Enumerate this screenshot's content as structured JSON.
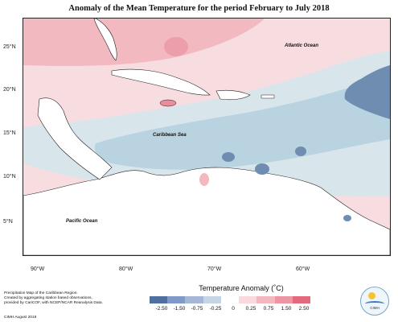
{
  "title": "Anomaly of the Mean Temperature for the period February to July 2018",
  "map": {
    "latitude_labels": [
      "25°N",
      "20°N",
      "15°N",
      "10°N",
      "5°N"
    ],
    "longitude_labels": [
      "90°W",
      "80°W",
      "70°W",
      "60°W"
    ],
    "ocean_labels": {
      "atlantic": "Atlantic Ocean",
      "caribbean": "Caribbean Sea",
      "pacific": "Pacific Ocean"
    },
    "colors": {
      "strong_negative": "#6f8db0",
      "negative": "#b9d3e0",
      "near_zero": "#d8e6ec",
      "slight_positive": "#f8dde0",
      "positive": "#f2b9c1",
      "strong_positive": "#e88e9b",
      "land": "#ffffff"
    }
  },
  "legend": {
    "title": "Temperature Anomaly (˚C)",
    "ticks": [
      "-2.50",
      "-1.50",
      "-0.75",
      "-0.25",
      "0",
      "0.25",
      "0.75",
      "1.50",
      "2.50"
    ],
    "colors": [
      "#4f6f9e",
      "#7f9ac8",
      "#a5b7d6",
      "#c5d5e6",
      "#ffffff",
      "#f9d9dd",
      "#f3b7c0",
      "#ec96a4",
      "#e3697d"
    ]
  },
  "footnote": {
    "line1": "Precipitation Map of the Caribbean Region.",
    "line2": "Created by aggregating station based observations,",
    "line3": "provided by CariCOF, with NCEP/NCAR Reanalysis Data.",
    "line4": "CIMH August 2018"
  },
  "logo": {
    "text": "CIMH"
  }
}
